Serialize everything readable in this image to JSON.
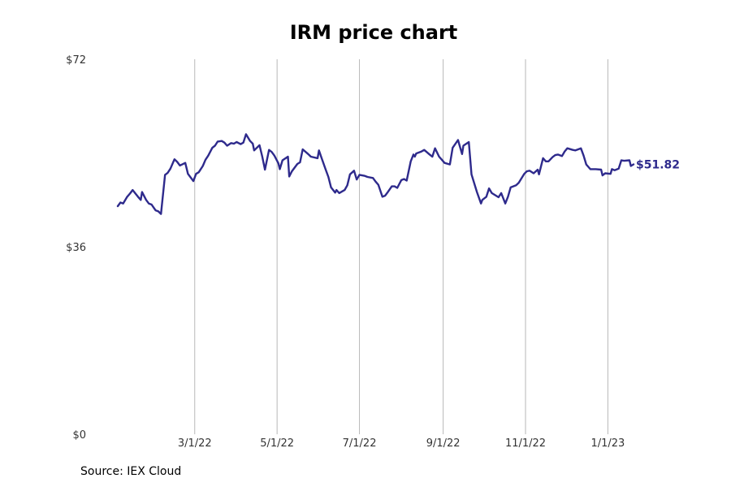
{
  "chart_data": {
    "type": "line",
    "title": "IRM price chart",
    "xlabel": "",
    "ylabel": "",
    "grid": "vertical lines at x ticks",
    "x_range": [
      "2022-01-03",
      "2023-01-20"
    ],
    "ylim": [
      0,
      72
    ],
    "y_ticks": [
      0,
      36,
      72
    ],
    "y_tick_labels": [
      "$0",
      "$36",
      "$72"
    ],
    "x_ticks": [
      "2022-03-01",
      "2022-05-01",
      "2022-07-01",
      "2022-09-01",
      "2022-11-01",
      "2023-01-01"
    ],
    "x_tick_labels": [
      "3/1/22",
      "5/1/22",
      "7/1/22",
      "9/1/22",
      "11/1/22",
      "1/1/23"
    ],
    "line_color": "#2e2a8c",
    "last_value_label": "$51.82",
    "series": [
      {
        "points": [
          [
            "2022-01-03",
            43.8
          ],
          [
            "2022-01-05",
            44.5
          ],
          [
            "2022-01-07",
            44.3
          ],
          [
            "2022-01-10",
            45.6
          ],
          [
            "2022-01-12",
            46.2
          ],
          [
            "2022-01-14",
            46.9
          ],
          [
            "2022-01-18",
            45.6
          ],
          [
            "2022-01-20",
            45.0
          ],
          [
            "2022-01-21",
            46.5
          ],
          [
            "2022-01-24",
            45.0
          ],
          [
            "2022-01-26",
            44.3
          ],
          [
            "2022-01-28",
            44.1
          ],
          [
            "2022-01-31",
            43.0
          ],
          [
            "2022-02-02",
            42.8
          ],
          [
            "2022-02-04",
            42.3
          ],
          [
            "2022-02-07",
            49.8
          ],
          [
            "2022-02-09",
            50.2
          ],
          [
            "2022-02-11",
            51.0
          ],
          [
            "2022-02-14",
            52.8
          ],
          [
            "2022-02-16",
            52.3
          ],
          [
            "2022-02-18",
            51.6
          ],
          [
            "2022-02-22",
            52.1
          ],
          [
            "2022-02-24",
            50.0
          ],
          [
            "2022-02-28",
            48.6
          ],
          [
            "2022-03-02",
            50.0
          ],
          [
            "2022-03-04",
            50.3
          ],
          [
            "2022-03-07",
            51.5
          ],
          [
            "2022-03-09",
            52.7
          ],
          [
            "2022-03-11",
            53.5
          ],
          [
            "2022-03-14",
            55.0
          ],
          [
            "2022-03-16",
            55.4
          ],
          [
            "2022-03-18",
            56.2
          ],
          [
            "2022-03-21",
            56.3
          ],
          [
            "2022-03-23",
            56.0
          ],
          [
            "2022-03-25",
            55.4
          ],
          [
            "2022-03-28",
            55.9
          ],
          [
            "2022-03-30",
            55.8
          ],
          [
            "2022-04-01",
            56.1
          ],
          [
            "2022-04-04",
            55.7
          ],
          [
            "2022-04-06",
            56.0
          ],
          [
            "2022-04-08",
            57.6
          ],
          [
            "2022-04-11",
            56.3
          ],
          [
            "2022-04-13",
            55.8
          ],
          [
            "2022-04-14",
            54.5
          ],
          [
            "2022-04-18",
            55.5
          ],
          [
            "2022-04-20",
            53.3
          ],
          [
            "2022-04-22",
            50.8
          ],
          [
            "2022-04-25",
            54.6
          ],
          [
            "2022-04-27",
            54.2
          ],
          [
            "2022-04-29",
            53.5
          ],
          [
            "2022-05-02",
            52.0
          ],
          [
            "2022-05-03",
            50.9
          ],
          [
            "2022-05-05",
            52.6
          ],
          [
            "2022-05-09",
            53.3
          ],
          [
            "2022-05-10",
            49.5
          ],
          [
            "2022-05-12",
            50.5
          ],
          [
            "2022-05-16",
            51.9
          ],
          [
            "2022-05-18",
            52.2
          ],
          [
            "2022-05-20",
            54.7
          ],
          [
            "2022-05-24",
            53.8
          ],
          [
            "2022-05-26",
            53.3
          ],
          [
            "2022-05-31",
            53.0
          ],
          [
            "2022-06-01",
            54.5
          ],
          [
            "2022-06-03",
            53.0
          ],
          [
            "2022-06-06",
            50.8
          ],
          [
            "2022-06-08",
            49.4
          ],
          [
            "2022-06-10",
            47.4
          ],
          [
            "2022-06-13",
            46.4
          ],
          [
            "2022-06-14",
            46.9
          ],
          [
            "2022-06-16",
            46.3
          ],
          [
            "2022-06-20",
            46.9
          ],
          [
            "2022-06-22",
            47.8
          ],
          [
            "2022-06-24",
            49.9
          ],
          [
            "2022-06-27",
            50.6
          ],
          [
            "2022-06-29",
            48.9
          ],
          [
            "2022-07-01",
            49.8
          ],
          [
            "2022-07-05",
            49.6
          ],
          [
            "2022-07-07",
            49.4
          ],
          [
            "2022-07-11",
            49.2
          ],
          [
            "2022-07-13",
            48.5
          ],
          [
            "2022-07-15",
            47.9
          ],
          [
            "2022-07-18",
            45.6
          ],
          [
            "2022-07-20",
            45.8
          ],
          [
            "2022-07-22",
            46.5
          ],
          [
            "2022-07-25",
            47.6
          ],
          [
            "2022-07-27",
            47.6
          ],
          [
            "2022-07-29",
            47.3
          ],
          [
            "2022-08-01",
            48.8
          ],
          [
            "2022-08-03",
            49.0
          ],
          [
            "2022-08-05",
            48.7
          ],
          [
            "2022-08-08",
            52.4
          ],
          [
            "2022-08-10",
            53.7
          ],
          [
            "2022-08-11",
            53.3
          ],
          [
            "2022-08-12",
            53.9
          ],
          [
            "2022-08-16",
            54.3
          ],
          [
            "2022-08-18",
            54.6
          ],
          [
            "2022-08-22",
            53.7
          ],
          [
            "2022-08-24",
            53.3
          ],
          [
            "2022-08-26",
            54.9
          ],
          [
            "2022-08-29",
            53.3
          ],
          [
            "2022-08-31",
            52.7
          ],
          [
            "2022-09-02",
            52.1
          ],
          [
            "2022-09-06",
            51.8
          ],
          [
            "2022-09-08",
            55.0
          ],
          [
            "2022-09-12",
            56.5
          ],
          [
            "2022-09-15",
            53.8
          ],
          [
            "2022-09-16",
            55.4
          ],
          [
            "2022-09-20",
            56.1
          ],
          [
            "2022-09-22",
            49.9
          ],
          [
            "2022-09-26",
            46.5
          ],
          [
            "2022-09-29",
            44.3
          ],
          [
            "2022-09-30",
            45.0
          ],
          [
            "2022-10-03",
            45.6
          ],
          [
            "2022-10-05",
            47.2
          ],
          [
            "2022-10-07",
            46.3
          ],
          [
            "2022-10-12",
            45.5
          ],
          [
            "2022-10-14",
            46.3
          ],
          [
            "2022-10-17",
            44.3
          ],
          [
            "2022-10-19",
            45.6
          ],
          [
            "2022-10-21",
            47.4
          ],
          [
            "2022-10-25",
            47.8
          ],
          [
            "2022-10-27",
            48.3
          ],
          [
            "2022-10-31",
            50.0
          ],
          [
            "2022-11-02",
            50.5
          ],
          [
            "2022-11-04",
            50.6
          ],
          [
            "2022-11-07",
            50.1
          ],
          [
            "2022-11-10",
            50.8
          ],
          [
            "2022-11-11",
            49.9
          ],
          [
            "2022-11-14",
            53.0
          ],
          [
            "2022-11-16",
            52.4
          ],
          [
            "2022-11-18",
            52.4
          ],
          [
            "2022-11-21",
            53.2
          ],
          [
            "2022-11-23",
            53.6
          ],
          [
            "2022-11-25",
            53.7
          ],
          [
            "2022-11-28",
            53.4
          ],
          [
            "2022-11-30",
            54.3
          ],
          [
            "2022-12-02",
            54.9
          ],
          [
            "2022-12-06",
            54.6
          ],
          [
            "2022-12-08",
            54.5
          ],
          [
            "2022-12-12",
            54.9
          ],
          [
            "2022-12-14",
            53.5
          ],
          [
            "2022-12-16",
            51.8
          ],
          [
            "2022-12-19",
            50.9
          ],
          [
            "2022-12-21",
            50.9
          ],
          [
            "2022-12-23",
            50.9
          ],
          [
            "2022-12-27",
            50.8
          ],
          [
            "2022-12-28",
            49.7
          ],
          [
            "2022-12-30",
            50.1
          ],
          [
            "2023-01-03",
            50.0
          ],
          [
            "2023-01-04",
            50.9
          ],
          [
            "2023-01-06",
            50.7
          ],
          [
            "2023-01-09",
            51.0
          ],
          [
            "2023-01-11",
            52.6
          ],
          [
            "2023-01-13",
            52.5
          ],
          [
            "2023-01-17",
            52.6
          ],
          [
            "2023-01-18",
            51.5
          ],
          [
            "2023-01-20",
            51.82
          ]
        ]
      }
    ]
  },
  "source_note": "Source: IEX Cloud"
}
